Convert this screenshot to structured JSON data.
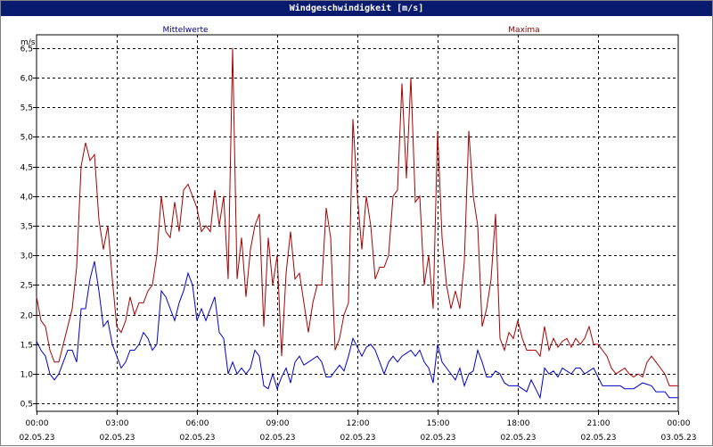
{
  "window": {
    "title": "Windgeschwindigkeit [m/s]"
  },
  "chart_data": {
    "type": "line",
    "title": "Windgeschwindigkeit [m/s]",
    "ylabel": "m/s",
    "xlabel": "",
    "ylim": [
      0.37,
      6.72
    ],
    "xlim": [
      0,
      1440
    ],
    "grid": true,
    "x_unit": "minutes from 02.05.23 00:00",
    "yticks": [
      "0,5",
      "1,0",
      "1,5",
      "2,0",
      "2,5",
      "3,0",
      "3,5",
      "4,0",
      "4,5",
      "5,0",
      "5,5",
      "6,0",
      "6,5"
    ],
    "ytick_values": [
      0.5,
      1.0,
      1.5,
      2.0,
      2.5,
      3.0,
      3.5,
      4.0,
      4.5,
      5.0,
      5.5,
      6.0,
      6.5
    ],
    "xticks": [
      {
        "time": "00:00",
        "date": "02.05.23",
        "t": 0
      },
      {
        "time": "03:00",
        "date": "02.05.23",
        "t": 180
      },
      {
        "time": "06:00",
        "date": "02.05.23",
        "t": 360
      },
      {
        "time": "09:00",
        "date": "02.05.23",
        "t": 540
      },
      {
        "time": "12:00",
        "date": "02.05.23",
        "t": 720
      },
      {
        "time": "15:00",
        "date": "02.05.23",
        "t": 900
      },
      {
        "time": "18:00",
        "date": "02.05.23",
        "t": 1080
      },
      {
        "time": "21:00",
        "date": "02.05.23",
        "t": 1260
      },
      {
        "time": "00:00",
        "date": "03.05.23",
        "t": 1440
      }
    ],
    "series": [
      {
        "name": "Mittelwerte",
        "color": "#0000cc",
        "points": [
          [
            0,
            1.55
          ],
          [
            10,
            1.4
          ],
          [
            20,
            1.3
          ],
          [
            30,
            1.0
          ],
          [
            40,
            0.9
          ],
          [
            50,
            1.0
          ],
          [
            60,
            1.2
          ],
          [
            70,
            1.4
          ],
          [
            80,
            1.4
          ],
          [
            90,
            1.2
          ],
          [
            100,
            2.1
          ],
          [
            110,
            2.1
          ],
          [
            120,
            2.6
          ],
          [
            130,
            2.9
          ],
          [
            140,
            2.4
          ],
          [
            150,
            1.8
          ],
          [
            160,
            1.9
          ],
          [
            170,
            1.5
          ],
          [
            180,
            1.3
          ],
          [
            190,
            1.1
          ],
          [
            200,
            1.2
          ],
          [
            210,
            1.4
          ],
          [
            220,
            1.4
          ],
          [
            230,
            1.5
          ],
          [
            240,
            1.7
          ],
          [
            250,
            1.6
          ],
          [
            260,
            1.4
          ],
          [
            270,
            1.5
          ],
          [
            280,
            2.4
          ],
          [
            290,
            2.3
          ],
          [
            300,
            2.1
          ],
          [
            310,
            1.9
          ],
          [
            320,
            2.2
          ],
          [
            330,
            2.4
          ],
          [
            340,
            2.7
          ],
          [
            350,
            2.5
          ],
          [
            360,
            1.9
          ],
          [
            370,
            2.1
          ],
          [
            380,
            1.9
          ],
          [
            390,
            2.1
          ],
          [
            400,
            2.3
          ],
          [
            410,
            1.7
          ],
          [
            420,
            1.6
          ],
          [
            430,
            1.0
          ],
          [
            440,
            1.2
          ],
          [
            450,
            1.0
          ],
          [
            460,
            1.1
          ],
          [
            470,
            1.0
          ],
          [
            480,
            1.1
          ],
          [
            490,
            1.4
          ],
          [
            500,
            1.3
          ],
          [
            510,
            0.8
          ],
          [
            520,
            0.75
          ],
          [
            530,
            1.0
          ],
          [
            540,
            0.75
          ],
          [
            550,
            0.95
          ],
          [
            560,
            1.1
          ],
          [
            570,
            0.85
          ],
          [
            580,
            1.2
          ],
          [
            590,
            1.3
          ],
          [
            600,
            1.15
          ],
          [
            610,
            1.2
          ],
          [
            620,
            1.25
          ],
          [
            630,
            1.3
          ],
          [
            640,
            1.2
          ],
          [
            650,
            0.95
          ],
          [
            660,
            0.95
          ],
          [
            670,
            1.05
          ],
          [
            680,
            1.15
          ],
          [
            690,
            1.05
          ],
          [
            700,
            1.3
          ],
          [
            710,
            1.6
          ],
          [
            720,
            1.45
          ],
          [
            730,
            1.3
          ],
          [
            740,
            1.45
          ],
          [
            750,
            1.5
          ],
          [
            760,
            1.4
          ],
          [
            770,
            1.2
          ],
          [
            780,
            1.0
          ],
          [
            790,
            1.2
          ],
          [
            800,
            1.3
          ],
          [
            810,
            1.2
          ],
          [
            820,
            1.3
          ],
          [
            830,
            1.35
          ],
          [
            840,
            1.4
          ],
          [
            850,
            1.3
          ],
          [
            860,
            1.4
          ],
          [
            870,
            1.2
          ],
          [
            880,
            1.1
          ],
          [
            890,
            0.85
          ],
          [
            900,
            1.5
          ],
          [
            910,
            1.2
          ],
          [
            920,
            1.1
          ],
          [
            930,
            1.0
          ],
          [
            940,
            0.9
          ],
          [
            950,
            1.1
          ],
          [
            960,
            0.8
          ],
          [
            970,
            1.0
          ],
          [
            980,
            1.05
          ],
          [
            990,
            1.4
          ],
          [
            1000,
            1.2
          ],
          [
            1010,
            0.95
          ],
          [
            1020,
            0.95
          ],
          [
            1030,
            1.05
          ],
          [
            1040,
            1.0
          ],
          [
            1050,
            0.85
          ],
          [
            1060,
            0.8
          ],
          [
            1070,
            0.8
          ],
          [
            1080,
            0.8
          ],
          [
            1090,
            0.75
          ],
          [
            1100,
            0.7
          ],
          [
            1110,
            0.9
          ],
          [
            1120,
            0.75
          ],
          [
            1130,
            0.6
          ],
          [
            1140,
            1.1
          ],
          [
            1150,
            1.0
          ],
          [
            1160,
            1.05
          ],
          [
            1170,
            0.95
          ],
          [
            1180,
            1.1
          ],
          [
            1190,
            1.05
          ],
          [
            1200,
            1.0
          ],
          [
            1210,
            1.1
          ],
          [
            1220,
            1.1
          ],
          [
            1230,
            1.0
          ],
          [
            1240,
            1.05
          ],
          [
            1250,
            1.1
          ],
          [
            1260,
            0.95
          ],
          [
            1270,
            0.8
          ],
          [
            1290,
            0.8
          ],
          [
            1310,
            0.8
          ],
          [
            1320,
            0.75
          ],
          [
            1340,
            0.75
          ],
          [
            1350,
            0.8
          ],
          [
            1360,
            0.85
          ],
          [
            1380,
            0.8
          ],
          [
            1390,
            0.7
          ],
          [
            1410,
            0.7
          ],
          [
            1420,
            0.6
          ],
          [
            1440,
            0.6
          ]
        ]
      },
      {
        "name": "Maxima",
        "color": "#aa0000",
        "points": [
          [
            0,
            2.3
          ],
          [
            10,
            1.9
          ],
          [
            20,
            1.8
          ],
          [
            30,
            1.4
          ],
          [
            40,
            1.2
          ],
          [
            50,
            1.2
          ],
          [
            60,
            1.5
          ],
          [
            70,
            1.8
          ],
          [
            80,
            2.1
          ],
          [
            90,
            2.8
          ],
          [
            100,
            4.5
          ],
          [
            110,
            4.9
          ],
          [
            120,
            4.6
          ],
          [
            130,
            4.7
          ],
          [
            140,
            3.6
          ],
          [
            150,
            3.1
          ],
          [
            160,
            3.5
          ],
          [
            170,
            2.6
          ],
          [
            180,
            1.8
          ],
          [
            190,
            1.7
          ],
          [
            200,
            1.9
          ],
          [
            210,
            2.3
          ],
          [
            220,
            2.0
          ],
          [
            230,
            2.2
          ],
          [
            240,
            2.2
          ],
          [
            250,
            2.4
          ],
          [
            260,
            2.5
          ],
          [
            270,
            3.0
          ],
          [
            280,
            4.0
          ],
          [
            290,
            3.4
          ],
          [
            300,
            3.3
          ],
          [
            310,
            3.9
          ],
          [
            320,
            3.4
          ],
          [
            330,
            4.1
          ],
          [
            340,
            4.2
          ],
          [
            350,
            4.0
          ],
          [
            360,
            3.8
          ],
          [
            370,
            3.4
          ],
          [
            380,
            3.5
          ],
          [
            390,
            3.4
          ],
          [
            400,
            4.1
          ],
          [
            410,
            3.5
          ],
          [
            420,
            4.0
          ],
          [
            430,
            2.6
          ],
          [
            440,
            6.5
          ],
          [
            450,
            2.6
          ],
          [
            460,
            3.3
          ],
          [
            470,
            2.3
          ],
          [
            480,
            3.1
          ],
          [
            490,
            3.5
          ],
          [
            500,
            3.7
          ],
          [
            510,
            1.8
          ],
          [
            520,
            3.3
          ],
          [
            530,
            2.5
          ],
          [
            540,
            3.0
          ],
          [
            550,
            1.3
          ],
          [
            560,
            2.7
          ],
          [
            570,
            3.4
          ],
          [
            580,
            2.6
          ],
          [
            590,
            2.7
          ],
          [
            600,
            2.2
          ],
          [
            610,
            1.7
          ],
          [
            620,
            2.2
          ],
          [
            630,
            2.5
          ],
          [
            640,
            2.5
          ],
          [
            650,
            3.8
          ],
          [
            660,
            3.3
          ],
          [
            670,
            1.4
          ],
          [
            680,
            1.6
          ],
          [
            690,
            2.0
          ],
          [
            700,
            2.2
          ],
          [
            710,
            5.3
          ],
          [
            720,
            4.0
          ],
          [
            730,
            3.1
          ],
          [
            740,
            4.0
          ],
          [
            750,
            3.5
          ],
          [
            760,
            2.6
          ],
          [
            770,
            2.8
          ],
          [
            780,
            2.8
          ],
          [
            790,
            3.0
          ],
          [
            800,
            4.0
          ],
          [
            810,
            4.1
          ],
          [
            820,
            5.9
          ],
          [
            830,
            4.3
          ],
          [
            840,
            6.0
          ],
          [
            850,
            3.9
          ],
          [
            860,
            4.0
          ],
          [
            870,
            2.5
          ],
          [
            880,
            3.0
          ],
          [
            890,
            2.1
          ],
          [
            900,
            5.1
          ],
          [
            910,
            3.3
          ],
          [
            920,
            2.5
          ],
          [
            930,
            2.1
          ],
          [
            940,
            2.4
          ],
          [
            950,
            2.1
          ],
          [
            960,
            2.9
          ],
          [
            970,
            5.1
          ],
          [
            980,
            4.0
          ],
          [
            990,
            3.5
          ],
          [
            1000,
            1.8
          ],
          [
            1010,
            2.1
          ],
          [
            1020,
            2.6
          ],
          [
            1030,
            3.7
          ],
          [
            1040,
            1.6
          ],
          [
            1050,
            1.4
          ],
          [
            1060,
            1.7
          ],
          [
            1070,
            1.6
          ],
          [
            1080,
            1.9
          ],
          [
            1090,
            1.6
          ],
          [
            1100,
            1.4
          ],
          [
            1110,
            1.4
          ],
          [
            1120,
            1.4
          ],
          [
            1130,
            1.3
          ],
          [
            1140,
            1.8
          ],
          [
            1150,
            1.4
          ],
          [
            1160,
            1.6
          ],
          [
            1170,
            1.45
          ],
          [
            1180,
            1.55
          ],
          [
            1190,
            1.6
          ],
          [
            1200,
            1.45
          ],
          [
            1210,
            1.6
          ],
          [
            1220,
            1.5
          ],
          [
            1230,
            1.6
          ],
          [
            1240,
            1.8
          ],
          [
            1250,
            1.5
          ],
          [
            1260,
            1.5
          ],
          [
            1270,
            1.4
          ],
          [
            1280,
            1.3
          ],
          [
            1290,
            1.1
          ],
          [
            1300,
            1.0
          ],
          [
            1310,
            1.05
          ],
          [
            1320,
            1.1
          ],
          [
            1330,
            1.0
          ],
          [
            1340,
            0.95
          ],
          [
            1350,
            1.0
          ],
          [
            1360,
            0.95
          ],
          [
            1370,
            1.2
          ],
          [
            1380,
            1.3
          ],
          [
            1390,
            1.2
          ],
          [
            1400,
            1.1
          ],
          [
            1410,
            1.0
          ],
          [
            1420,
            0.8
          ],
          [
            1440,
            0.8
          ]
        ]
      }
    ]
  }
}
